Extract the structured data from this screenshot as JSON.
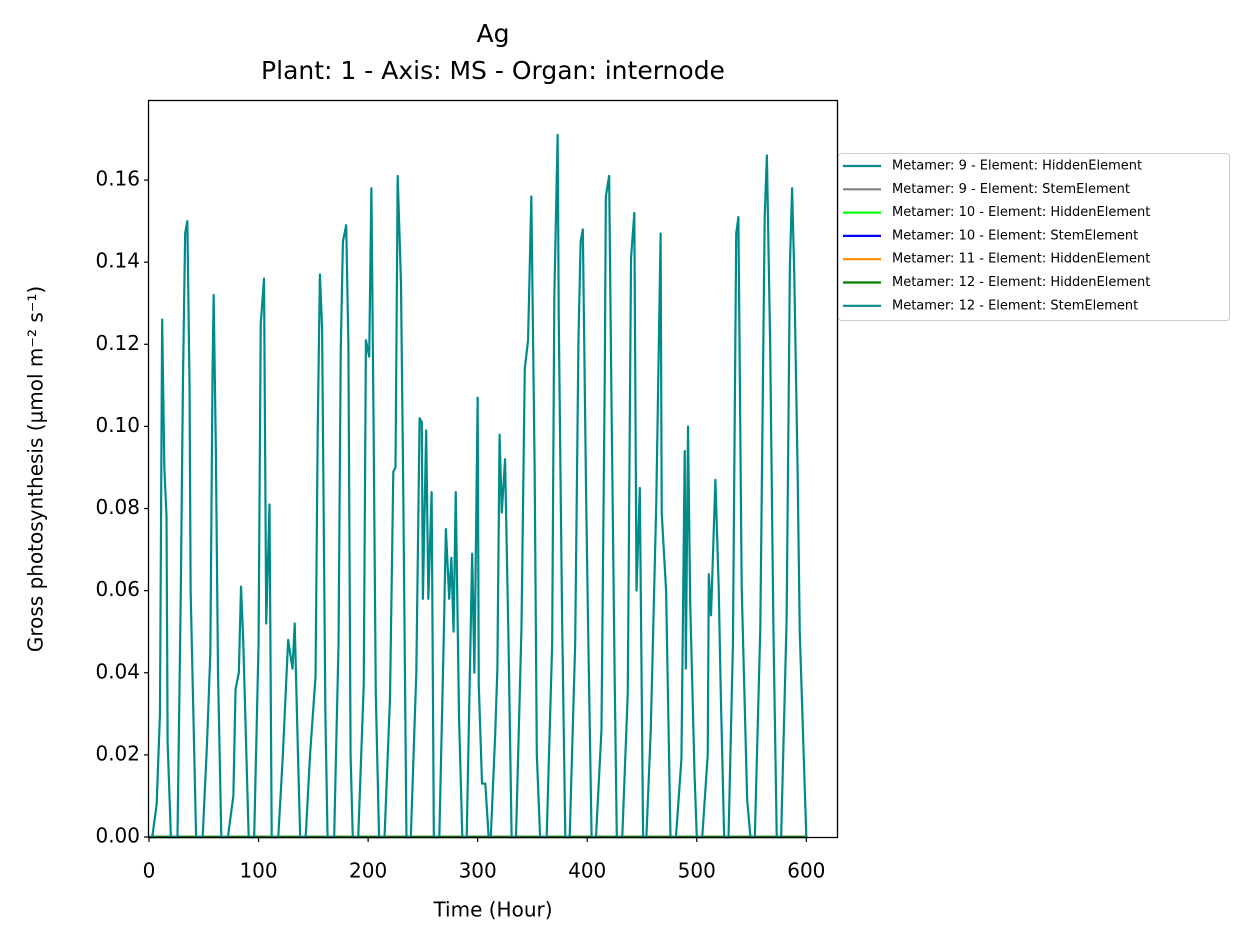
{
  "chart_data": {
    "type": "line",
    "title": "Ag",
    "subtitle": "Plant: 1 - Axis: MS - Organ: internode",
    "xlabel": "Time (Hour)",
    "ylabel": "Gross photosynthesis (µmol m⁻² s⁻¹)",
    "xlim": [
      0,
      628
    ],
    "ylim": [
      0,
      0.1795
    ],
    "xticks": [
      0,
      100,
      200,
      300,
      400,
      500,
      600
    ],
    "yticks": [
      {
        "value": 0,
        "label": "0.00"
      },
      0.02,
      0.04,
      0.06,
      0.08,
      {
        "value": 0.1,
        "label": "0.10"
      },
      0.12,
      0.14,
      0.16
    ],
    "series": [
      {
        "name": "Metamer: 9 - Element: HiddenElement",
        "color": "#008b8b",
        "x": [
          0,
          600
        ],
        "values": [
          0,
          0
        ]
      },
      {
        "name": "Metamer: 9 - Element: StemElement",
        "color": "#808080",
        "x": [
          0,
          600
        ],
        "values": [
          0,
          0
        ]
      },
      {
        "name": "Metamer: 10 - Element: HiddenElement",
        "color": "#00ff00",
        "x": [
          0,
          600
        ],
        "values": [
          0,
          0
        ]
      },
      {
        "name": "Metamer: 10 - Element: StemElement",
        "color": "#0000ff",
        "x": [
          0,
          600
        ],
        "values": [
          0,
          0
        ]
      },
      {
        "name": "Metamer: 11 - Element: HiddenElement",
        "color": "#ff8c00",
        "x": [
          0,
          600
        ],
        "values": [
          0,
          0
        ]
      },
      {
        "name": "Metamer: 12 - Element: HiddenElement",
        "color": "#008000",
        "x": [
          0,
          600
        ],
        "values": [
          0,
          0
        ]
      },
      {
        "name": "Metamer: 12 - Element: StemElement",
        "color": "#008b8b",
        "x": [
          0,
          3,
          7,
          10,
          12,
          14,
          16,
          17,
          20,
          26,
          29,
          31,
          33,
          35,
          37,
          38,
          43,
          49,
          53,
          56,
          58,
          59,
          61,
          63,
          66,
          72,
          77,
          79,
          82,
          84,
          86,
          89,
          91,
          96,
          100,
          102,
          105,
          107,
          110,
          112,
          118,
          122,
          127,
          131,
          133,
          136,
          138,
          143,
          147,
          152,
          154,
          156,
          158,
          161,
          163,
          169,
          173,
          175,
          177,
          180,
          182,
          184,
          186,
          191,
          196,
          198,
          201,
          203,
          205,
          207,
          210,
          215,
          220,
          223,
          225,
          227,
          230,
          232,
          235,
          239,
          244,
          247,
          249,
          250,
          253,
          255,
          258,
          260,
          265,
          269,
          271,
          274,
          276,
          278,
          280,
          283,
          286,
          290,
          295,
          297,
          300,
          301,
          304,
          307,
          310,
          312,
          316,
          318,
          320,
          322,
          325,
          328,
          331,
          335,
          340,
          343,
          346,
          349,
          352,
          354,
          357,
          363,
          368,
          370,
          373,
          374,
          377,
          380,
          384,
          389,
          392,
          394,
          396,
          399,
          401,
          404,
          408,
          413,
          416,
          417,
          420,
          422,
          425,
          427,
          432,
          437,
          440,
          443,
          445,
          448,
          451,
          454,
          458,
          463,
          467,
          468,
          472,
          476,
          481,
          486,
          489,
          490,
          492,
          494,
          498,
          500,
          505,
          510,
          511,
          513,
          517,
          520,
          522,
          525,
          529,
          533,
          536,
          538,
          541,
          543,
          546,
          549,
          553,
          558,
          562,
          564,
          567,
          570,
          573,
          577,
          582,
          585,
          587,
          589,
          592,
          594,
          600
        ],
        "values": [
          0,
          0,
          0.008,
          0.03,
          0.126,
          0.09,
          0.078,
          0.023,
          0,
          0,
          0.059,
          0.111,
          0.147,
          0.15,
          0.11,
          0.06,
          0,
          0,
          0.023,
          0.045,
          0.113,
          0.132,
          0.095,
          0.04,
          0,
          0,
          0.01,
          0.036,
          0.04,
          0.061,
          0.048,
          0.019,
          0,
          0,
          0.047,
          0.125,
          0.136,
          0.052,
          0.081,
          0,
          0,
          0.019,
          0.048,
          0.041,
          0.052,
          0.02,
          0,
          0,
          0.02,
          0.039,
          0.099,
          0.137,
          0.124,
          0.03,
          0,
          0,
          0.047,
          0.118,
          0.145,
          0.149,
          0.12,
          0.02,
          0,
          0,
          0.037,
          0.121,
          0.117,
          0.158,
          0.1,
          0.035,
          0,
          0,
          0.034,
          0.089,
          0.09,
          0.161,
          0.135,
          0.087,
          0,
          0,
          0.04,
          0.102,
          0.101,
          0.058,
          0.099,
          0.058,
          0.084,
          0,
          0,
          0.048,
          0.075,
          0.058,
          0.068,
          0.05,
          0.084,
          0.029,
          0,
          0,
          0.069,
          0.04,
          0.107,
          0.037,
          0.013,
          0.013,
          0,
          0,
          0.025,
          0.041,
          0.098,
          0.079,
          0.092,
          0.05,
          0,
          0,
          0.051,
          0.114,
          0.121,
          0.156,
          0.09,
          0.02,
          0,
          0,
          0.047,
          0.132,
          0.171,
          0.127,
          0.055,
          0,
          0,
          0.047,
          0.121,
          0.145,
          0.148,
          0.083,
          0.048,
          0,
          0,
          0.026,
          0.112,
          0.156,
          0.161,
          0.11,
          0.04,
          0,
          0,
          0.035,
          0.141,
          0.152,
          0.06,
          0.085,
          0,
          0,
          0.026,
          0.081,
          0.147,
          0.079,
          0.06,
          0,
          0,
          0.019,
          0.094,
          0.041,
          0.1,
          0.057,
          0.015,
          0,
          0,
          0.02,
          0.064,
          0.054,
          0.087,
          0.061,
          0.034,
          0,
          0,
          0.047,
          0.147,
          0.151,
          0.061,
          0.04,
          0.009,
          0,
          0,
          0.051,
          0.151,
          0.166,
          0.12,
          0.05,
          0,
          0,
          0.053,
          0.139,
          0.158,
          0.137,
          0.09,
          0.05,
          0
        ]
      }
    ]
  }
}
